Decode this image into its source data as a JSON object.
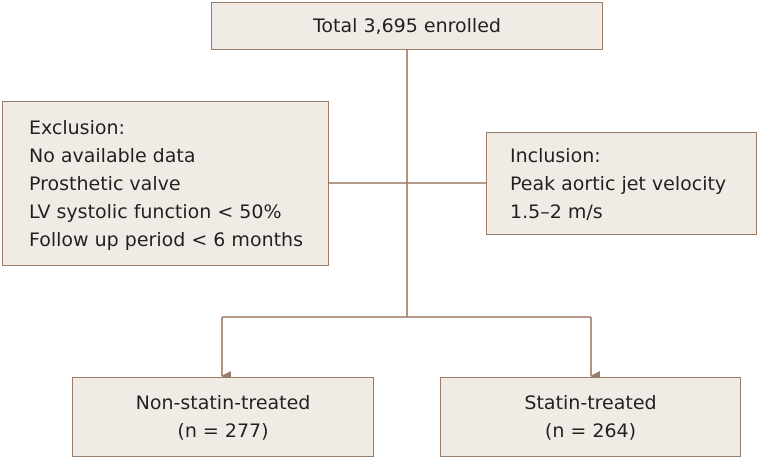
{
  "boxes": {
    "total": {
      "lines": [
        "Total 3,695 enrolled"
      ]
    },
    "exclusion": {
      "lines": [
        "Exclusion:",
        "No available data",
        "Prosthetic valve",
        "LV systolic function < 50%",
        "Follow up period < 6 months"
      ]
    },
    "inclusion": {
      "lines": [
        "Inclusion:",
        "Peak aortic jet velocity",
        "1.5–2 m/s"
      ]
    },
    "non_statin": {
      "lines": [
        "Non-statin-treated",
        "(n = 277)"
      ]
    },
    "statin": {
      "lines": [
        "Statin-treated",
        "(n = 264)"
      ]
    }
  },
  "colors": {
    "box_fill": "#f1ebe6",
    "box_border": "#9c7b67",
    "connector": "#9c7b67",
    "text": "#231f20"
  }
}
